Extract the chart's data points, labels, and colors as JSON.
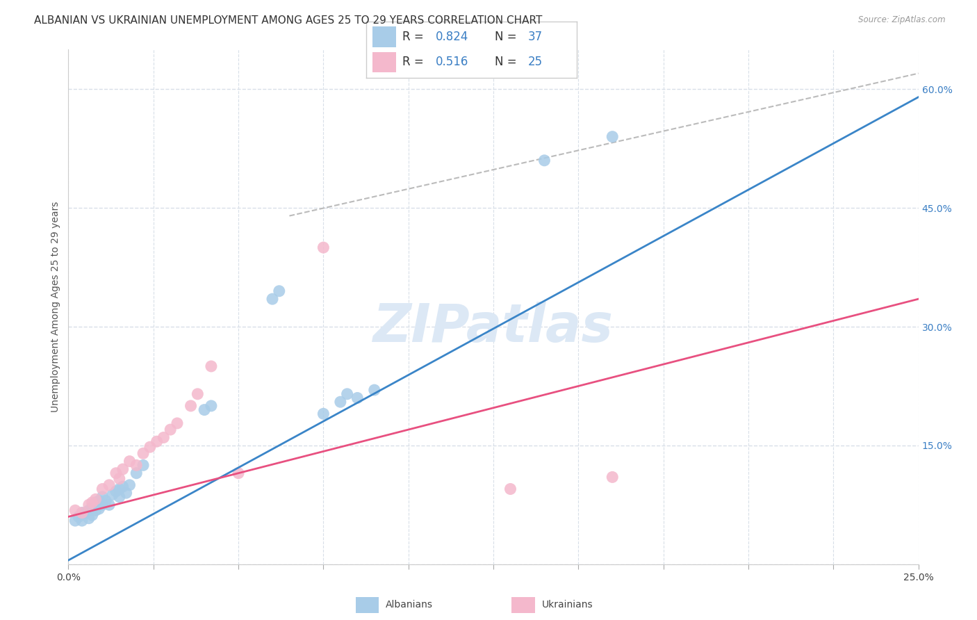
{
  "title": "ALBANIAN VS UKRAINIAN UNEMPLOYMENT AMONG AGES 25 TO 29 YEARS CORRELATION CHART",
  "source": "Source: ZipAtlas.com",
  "ylabel": "Unemployment Among Ages 25 to 29 years",
  "xlim": [
    0.0,
    0.25
  ],
  "ylim": [
    0.0,
    0.65
  ],
  "x_ticks": [
    0.0,
    0.025,
    0.05,
    0.075,
    0.1,
    0.125,
    0.15,
    0.175,
    0.2,
    0.225,
    0.25
  ],
  "y_ticks_right": [
    0.0,
    0.15,
    0.3,
    0.45,
    0.6
  ],
  "albanian_R": 0.824,
  "albanian_N": 37,
  "ukrainian_R": 0.516,
  "ukrainian_N": 25,
  "blue_scatter": "#a8cce8",
  "pink_scatter": "#f4b8cc",
  "blue_line": "#3a85c8",
  "pink_line": "#e85080",
  "ref_line_color": "#bbbbbb",
  "legend_value_color": "#3a7ec4",
  "watermark_color": "#dce8f5",
  "grid_color": "#d8dfe8",
  "bg_color": "#ffffff",
  "title_color": "#333333",
  "tick_color": "#3a7ec4",
  "albanian_x": [
    0.002,
    0.003,
    0.004,
    0.004,
    0.005,
    0.006,
    0.006,
    0.007,
    0.007,
    0.008,
    0.008,
    0.009,
    0.009,
    0.01,
    0.01,
    0.011,
    0.012,
    0.013,
    0.014,
    0.015,
    0.015,
    0.016,
    0.017,
    0.018,
    0.02,
    0.022,
    0.04,
    0.042,
    0.06,
    0.062,
    0.075,
    0.08,
    0.082,
    0.085,
    0.09,
    0.14,
    0.16
  ],
  "albanian_y": [
    0.055,
    0.06,
    0.055,
    0.065,
    0.065,
    0.058,
    0.068,
    0.062,
    0.072,
    0.068,
    0.078,
    0.07,
    0.08,
    0.075,
    0.085,
    0.08,
    0.075,
    0.088,
    0.092,
    0.085,
    0.095,
    0.098,
    0.09,
    0.1,
    0.115,
    0.125,
    0.195,
    0.2,
    0.335,
    0.345,
    0.19,
    0.205,
    0.215,
    0.21,
    0.22,
    0.51,
    0.54
  ],
  "ukrainian_x": [
    0.002,
    0.004,
    0.006,
    0.007,
    0.008,
    0.01,
    0.012,
    0.014,
    0.015,
    0.016,
    0.018,
    0.02,
    0.022,
    0.024,
    0.026,
    0.028,
    0.03,
    0.032,
    0.036,
    0.038,
    0.042,
    0.05,
    0.075,
    0.13,
    0.16
  ],
  "ukrainian_y": [
    0.068,
    0.065,
    0.075,
    0.078,
    0.082,
    0.095,
    0.1,
    0.115,
    0.108,
    0.12,
    0.13,
    0.125,
    0.14,
    0.148,
    0.155,
    0.16,
    0.17,
    0.178,
    0.2,
    0.215,
    0.25,
    0.115,
    0.4,
    0.095,
    0.11
  ],
  "blue_line_x": [
    0.0,
    0.25
  ],
  "blue_line_y": [
    0.005,
    0.59
  ],
  "pink_line_x": [
    0.0,
    0.25
  ],
  "pink_line_y": [
    0.06,
    0.335
  ],
  "ref_line_x": [
    0.065,
    0.25
  ],
  "ref_line_y": [
    0.44,
    0.62
  ]
}
